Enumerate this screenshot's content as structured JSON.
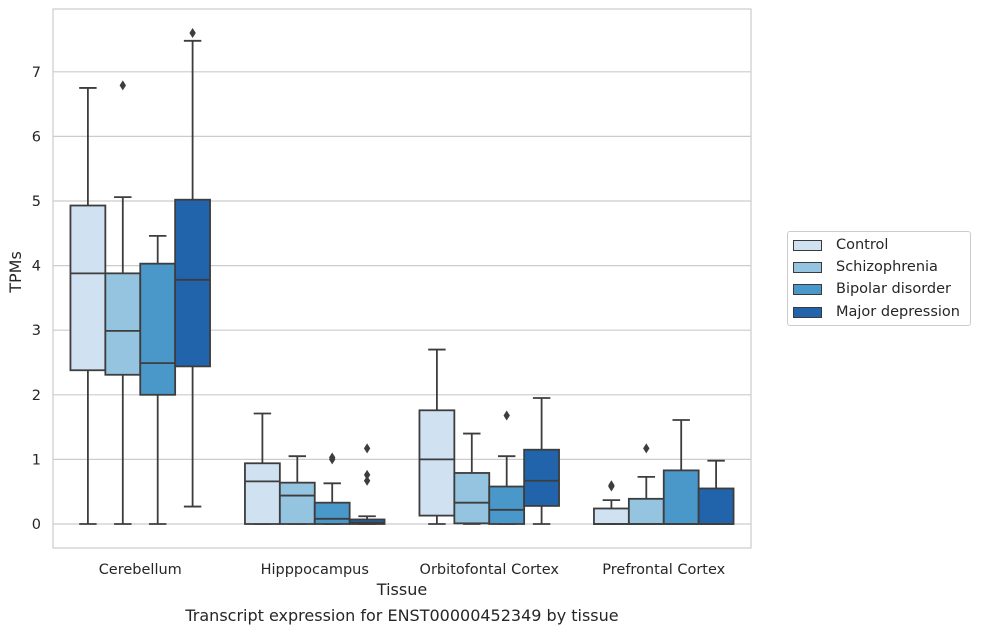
{
  "chart_data": {
    "type": "box",
    "xlabel": "Tissue",
    "ylabel": "TPMs",
    "caption": "Transcript expression for ENST00000452349 by tissue",
    "categories": [
      "Cerebellum",
      "Hipppocampus",
      "Orbitofontal Cortex",
      "Prefrontal Cortex"
    ],
    "ylim": [
      -0.35,
      7.95
    ],
    "yticks": [
      0,
      1,
      2,
      3,
      4,
      5,
      6,
      7
    ],
    "grid": "horizontal",
    "legend_position": "right",
    "series": [
      {
        "name": "Control",
        "color": "#d0e1f2",
        "boxes": [
          {
            "whisker_low": 0.0,
            "q1": 2.38,
            "median": 3.88,
            "q3": 4.93,
            "whisker_high": 6.75,
            "outliers": []
          },
          {
            "whisker_low": 0.0,
            "q1": 0.0,
            "median": 0.66,
            "q3": 0.94,
            "whisker_high": 1.71,
            "outliers": []
          },
          {
            "whisker_low": 0.0,
            "q1": 0.13,
            "median": 1.0,
            "q3": 1.76,
            "whisker_high": 2.7,
            "outliers": []
          },
          {
            "whisker_low": 0.0,
            "q1": 0.0,
            "median": 0.0,
            "q3": 0.24,
            "whisker_high": 0.37,
            "outliers": [
              0.58,
              0.6
            ]
          }
        ]
      },
      {
        "name": "Schizophrenia",
        "color": "#94c4df",
        "boxes": [
          {
            "whisker_low": 0.0,
            "q1": 2.31,
            "median": 2.99,
            "q3": 3.88,
            "whisker_high": 5.06,
            "outliers": [
              6.79
            ]
          },
          {
            "whisker_low": 0.0,
            "q1": 0.0,
            "median": 0.44,
            "q3": 0.64,
            "whisker_high": 1.05,
            "outliers": []
          },
          {
            "whisker_low": 0.0,
            "q1": 0.01,
            "median": 0.33,
            "q3": 0.79,
            "whisker_high": 1.4,
            "outliers": []
          },
          {
            "whisker_low": 0.0,
            "q1": 0.0,
            "median": 0.0,
            "q3": 0.39,
            "whisker_high": 0.73,
            "outliers": [
              1.17
            ]
          }
        ]
      },
      {
        "name": "Bipolar disorder",
        "color": "#4a98c9",
        "boxes": [
          {
            "whisker_low": 0.0,
            "q1": 2.0,
            "median": 2.49,
            "q3": 4.03,
            "whisker_high": 4.46,
            "outliers": []
          },
          {
            "whisker_low": 0.0,
            "q1": 0.0,
            "median": 0.08,
            "q3": 0.33,
            "whisker_high": 0.63,
            "outliers": [
              1.0,
              1.03
            ]
          },
          {
            "whisker_low": 0.0,
            "q1": 0.0,
            "median": 0.22,
            "q3": 0.58,
            "whisker_high": 1.05,
            "outliers": [
              1.68
            ]
          },
          {
            "whisker_low": 0.0,
            "q1": 0.0,
            "median": 0.0,
            "q3": 0.83,
            "whisker_high": 1.61,
            "outliers": []
          }
        ]
      },
      {
        "name": "Major depression",
        "color": "#2164ab",
        "boxes": [
          {
            "whisker_low": 0.27,
            "q1": 2.44,
            "median": 3.78,
            "q3": 5.02,
            "whisker_high": 7.48,
            "outliers": [
              7.6
            ]
          },
          {
            "whisker_low": 0.0,
            "q1": 0.0,
            "median": 0.02,
            "q3": 0.07,
            "whisker_high": 0.12,
            "outliers": [
              0.67,
              0.76,
              1.17
            ]
          },
          {
            "whisker_low": 0.0,
            "q1": 0.28,
            "median": 0.67,
            "q3": 1.15,
            "whisker_high": 1.95,
            "outliers": []
          },
          {
            "whisker_low": 0.0,
            "q1": 0.0,
            "median": 0.0,
            "q3": 0.55,
            "whisker_high": 0.98,
            "outliers": []
          }
        ]
      }
    ]
  }
}
